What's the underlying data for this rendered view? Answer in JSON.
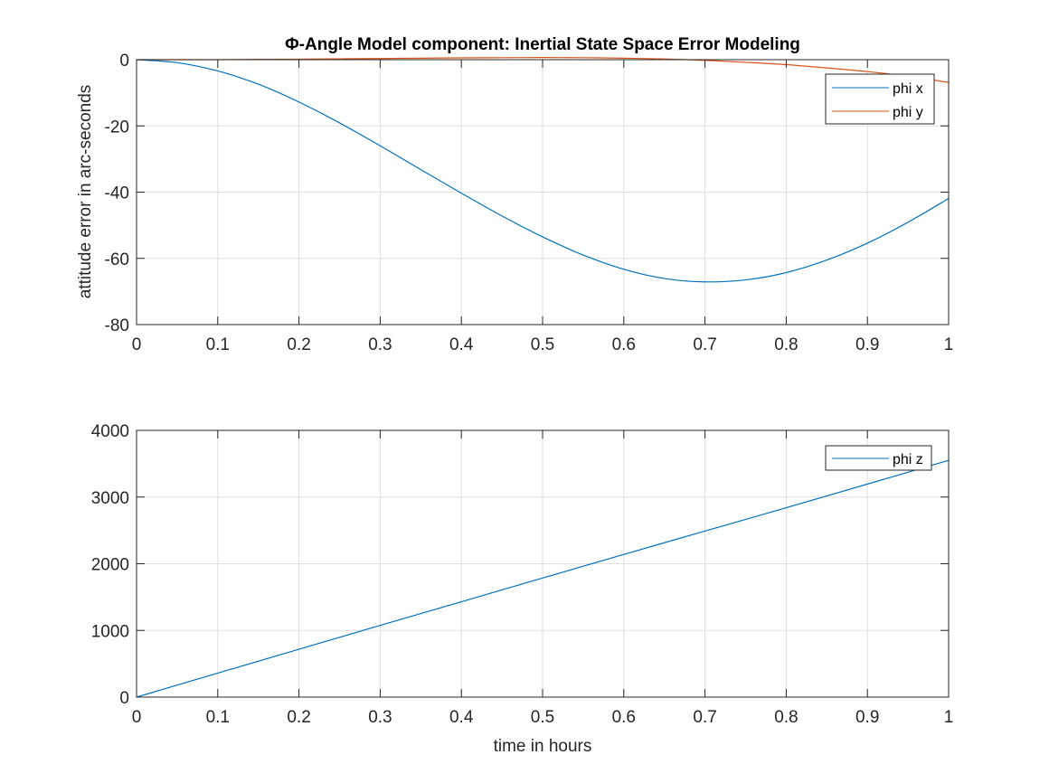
{
  "figure": {
    "title": "Φ-Angle Model component: Inertial State Space Error Modeling"
  },
  "chart_data": [
    {
      "type": "line",
      "title": "Φ-Angle Model component: Inertial State Space Error Modeling",
      "xlabel": "",
      "ylabel": "attitude error in arc-seconds",
      "xlim": [
        0,
        1
      ],
      "ylim": [
        -80,
        0
      ],
      "xticks": [
        0,
        0.1,
        0.2,
        0.3,
        0.4,
        0.5,
        0.6,
        0.7,
        0.8,
        0.9,
        1
      ],
      "xtick_labels": [
        "0",
        "0.1",
        "0.2",
        "0.3",
        "0.4",
        "0.5",
        "0.6",
        "0.7",
        "0.8",
        "0.9",
        "1"
      ],
      "yticks": [
        -80,
        -60,
        -40,
        -20,
        0
      ],
      "ytick_labels": [
        "-80",
        "-60",
        "-40",
        "-20",
        "0"
      ],
      "grid": true,
      "legend_position": "top-right",
      "x": [
        0,
        0.05,
        0.1,
        0.15,
        0.2,
        0.25,
        0.3,
        0.35,
        0.4,
        0.45,
        0.5,
        0.55,
        0.6,
        0.65,
        0.7,
        0.75,
        0.8,
        0.85,
        0.9,
        0.95,
        1.0
      ],
      "series": [
        {
          "name": "phi x",
          "color": "#0072BD",
          "values": [
            0,
            -0.9,
            -3.4,
            -7.4,
            -12.8,
            -19.1,
            -26.0,
            -33.2,
            -40.3,
            -47.2,
            -53.5,
            -59.0,
            -63.3,
            -66.1,
            -67.1,
            -66.5,
            -64.3,
            -60.5,
            -55.4,
            -49.1,
            -41.9
          ]
        },
        {
          "name": "phi y",
          "color": "#D95319",
          "values": [
            0,
            0,
            0,
            0.1,
            0.15,
            0.25,
            0.35,
            0.45,
            0.55,
            0.6,
            0.65,
            0.6,
            0.45,
            0.2,
            -0.2,
            -0.8,
            -1.5,
            -2.5,
            -3.6,
            -5.0,
            -6.9
          ]
        }
      ]
    },
    {
      "type": "line",
      "title": "",
      "xlabel": "time in hours",
      "ylabel": "",
      "xlim": [
        0,
        1
      ],
      "ylim": [
        0,
        4000
      ],
      "xticks": [
        0,
        0.1,
        0.2,
        0.3,
        0.4,
        0.5,
        0.6,
        0.7,
        0.8,
        0.9,
        1
      ],
      "xtick_labels": [
        "0",
        "0.1",
        "0.2",
        "0.3",
        "0.4",
        "0.5",
        "0.6",
        "0.7",
        "0.8",
        "0.9",
        "1"
      ],
      "yticks": [
        0,
        1000,
        2000,
        3000,
        4000
      ],
      "ytick_labels": [
        "0",
        "1000",
        "2000",
        "3000",
        "4000"
      ],
      "grid": true,
      "legend_position": "top-right",
      "x": [
        0,
        0.1,
        0.2,
        0.3,
        0.4,
        0.5,
        0.6,
        0.7,
        0.8,
        0.9,
        1.0
      ],
      "series": [
        {
          "name": "phi z",
          "color": "#0072BD",
          "values": [
            0,
            360,
            718,
            1075,
            1430,
            1785,
            2140,
            2490,
            2840,
            3195,
            3550
          ]
        }
      ]
    }
  ]
}
